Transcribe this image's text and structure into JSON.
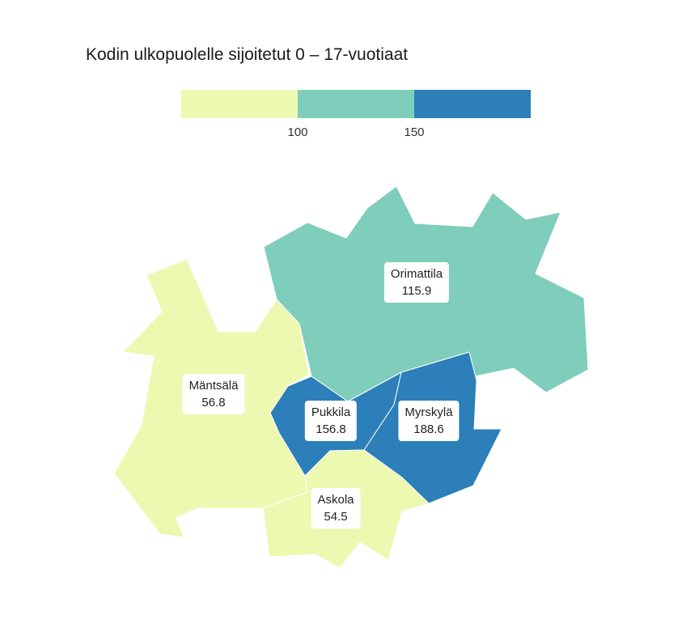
{
  "title": "Kodin ulkopuolelle sijoitetut 0 – 17-vuotiaat",
  "legend": {
    "bins": [
      {
        "color": "#edf8b1"
      },
      {
        "color": "#7fcdbb"
      },
      {
        "color": "#2c7fb8"
      }
    ],
    "ticks": [
      "100",
      "150"
    ]
  },
  "regions": [
    {
      "name": "Mäntsälä",
      "value": "56.8",
      "color": "#edf8b1"
    },
    {
      "name": "Orimattila",
      "value": "115.9",
      "color": "#7fcdbb"
    },
    {
      "name": "Pukkila",
      "value": "156.8",
      "color": "#2c7fb8"
    },
    {
      "name": "Myrskylä",
      "value": "188.6",
      "color": "#2c7fb8"
    },
    {
      "name": "Askola",
      "value": "54.5",
      "color": "#edf8b1"
    }
  ]
}
